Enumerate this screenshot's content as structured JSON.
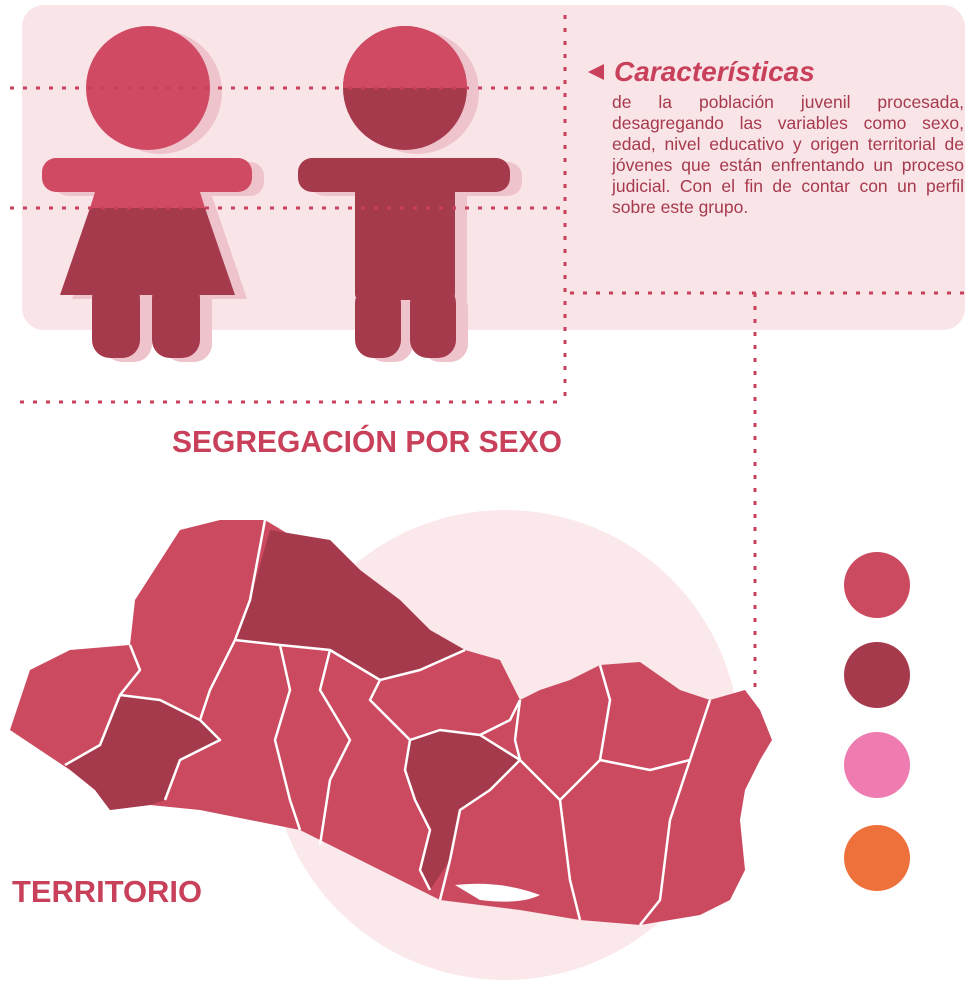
{
  "heading": "Características",
  "description": "de la población juvenil procesada, desagregando las variables como sexo, edad, nivel educativo y origen territorial de jóvenes que están enfrentando un proceso judicial. Con el fin de contar con un perfil sobre este grupo.",
  "section_titles": {
    "sex": "SEGREGACIÓN POR SEXO",
    "territory": "TERRITORIO"
  }
}
